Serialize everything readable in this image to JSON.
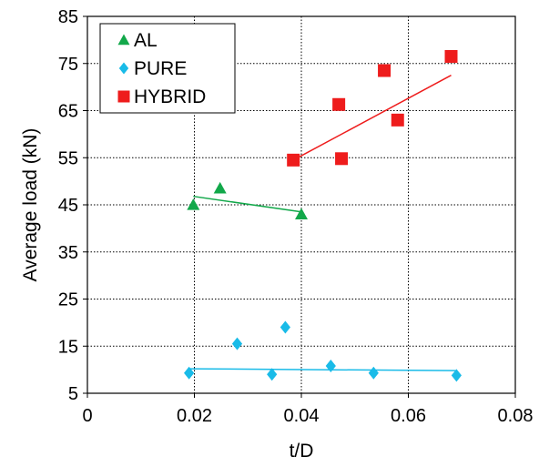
{
  "chart_data": {
    "type": "scatter",
    "xlabel": "t/D",
    "ylabel": "Average load (kN)",
    "xlim": [
      0,
      0.08
    ],
    "ylim": [
      5,
      85
    ],
    "xticks": [
      0,
      0.02,
      0.04,
      0.06,
      0.08
    ],
    "xtick_labels": [
      "0",
      "0.02",
      "0.04",
      "0.06",
      "0.08"
    ],
    "yticks": [
      5,
      15,
      25,
      35,
      45,
      55,
      65,
      75,
      85
    ],
    "ytick_labels": [
      "5",
      "15",
      "25",
      "35",
      "45",
      "55",
      "65",
      "75",
      "85"
    ],
    "grid": "dotted",
    "legend_position": "top-left",
    "series": [
      {
        "name": "AL",
        "marker": "triangle",
        "color": "#12a84a",
        "x": [
          0.0198,
          0.0248,
          0.04
        ],
        "y": [
          45.0,
          48.5,
          43.0
        ],
        "trend": {
          "x": [
            0.0198,
            0.04
          ],
          "y": [
            46.8,
            43.5
          ]
        }
      },
      {
        "name": "PURE",
        "marker": "diamond",
        "color": "#19bbe8",
        "x": [
          0.019,
          0.028,
          0.0345,
          0.037,
          0.0455,
          0.0535,
          0.069
        ],
        "y": [
          9.3,
          15.5,
          9.0,
          19.0,
          10.8,
          9.3,
          8.8
        ],
        "trend": {
          "x": [
            0.019,
            0.069
          ],
          "y": [
            10.2,
            9.8
          ]
        }
      },
      {
        "name": "HYBRID",
        "marker": "square",
        "color": "#ee1c1c",
        "x": [
          0.0385,
          0.047,
          0.0475,
          0.0555,
          0.058,
          0.068
        ],
        "y": [
          54.5,
          66.3,
          54.8,
          73.5,
          63.0,
          76.5
        ],
        "trend": {
          "x": [
            0.0385,
            0.068
          ],
          "y": [
            54.5,
            72.5
          ]
        }
      }
    ]
  }
}
